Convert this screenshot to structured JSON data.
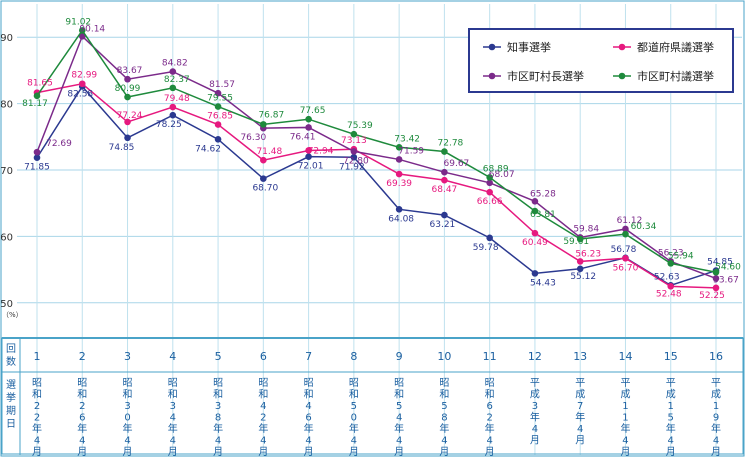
{
  "chart_data": {
    "type": "line",
    "y_unit_label": "（%）",
    "ylim": [
      45,
      95
    ],
    "yticks": [
      50,
      60,
      70,
      80,
      90
    ],
    "grid": true,
    "legend_position": "top-right",
    "row_labels": {
      "round": "回数",
      "date": "選挙期日"
    },
    "x": [
      "1",
      "2",
      "3",
      "4",
      "5",
      "6",
      "7",
      "8",
      "9",
      "10",
      "11",
      "12",
      "13",
      "14",
      "15",
      "16"
    ],
    "dates": [
      "昭和22年4月",
      "昭和26年4月",
      "昭和30年4月",
      "昭和34年4月",
      "昭和38年4月",
      "昭和42年4月",
      "昭和46年4月",
      "昭和50年4月",
      "昭和54年4月",
      "昭和58年4月",
      "昭和62年4月",
      "平成3年4月",
      "平成7年4月",
      "平成11年4月",
      "平成15年4月",
      "平成19年4月"
    ],
    "series": [
      {
        "name": "知事選挙",
        "color": "#2b3990",
        "values": [
          71.85,
          82.58,
          74.85,
          78.25,
          74.62,
          68.7,
          72.01,
          71.92,
          64.08,
          63.21,
          59.78,
          54.43,
          55.12,
          56.78,
          52.63,
          54.85
        ]
      },
      {
        "name": "都道府県議選挙",
        "color": "#e6197f",
        "values": [
          81.65,
          82.99,
          77.24,
          79.48,
          76.85,
          71.48,
          72.94,
          73.13,
          69.39,
          68.47,
          66.66,
          60.49,
          56.23,
          56.7,
          52.48,
          52.25
        ]
      },
      {
        "name": "市区町村長選挙",
        "color": "#7b2a8a",
        "values": [
          72.69,
          90.14,
          83.67,
          84.82,
          81.57,
          76.3,
          76.41,
          72.8,
          71.59,
          69.67,
          68.07,
          65.28,
          59.84,
          61.12,
          56.23,
          53.67
        ]
      },
      {
        "name": "市区町村議選挙",
        "color": "#1e8a3c",
        "values": [
          81.17,
          91.02,
          80.99,
          82.37,
          79.55,
          76.87,
          77.65,
          75.39,
          73.42,
          72.78,
          68.89,
          63.81,
          59.61,
          60.34,
          55.94,
          54.6
        ]
      }
    ]
  }
}
